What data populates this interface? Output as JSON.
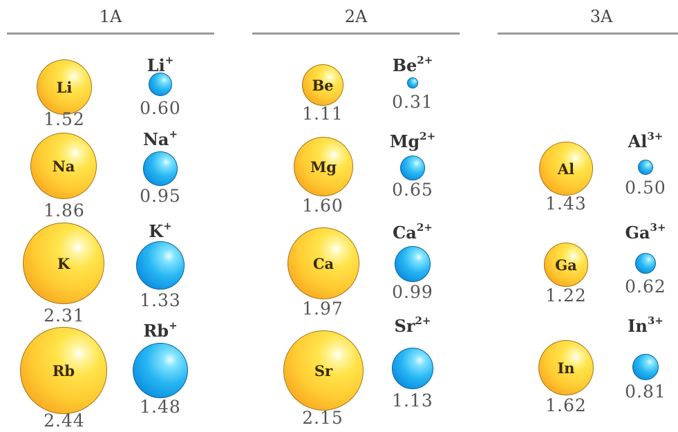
{
  "groups": [
    {
      "name": "1A",
      "atoms": [
        {
          "symbol": "Li",
          "radius": "1.52"
        },
        {
          "symbol": "Na",
          "radius": "1.86"
        },
        {
          "symbol": "K",
          "radius": "2.31"
        },
        {
          "symbol": "Rb",
          "radius": "2.44"
        }
      ],
      "ions": [
        {
          "symbol": "Li",
          "charge": "+",
          "radius": "0.60"
        },
        {
          "symbol": "Na",
          "charge": "+",
          "radius": "0.95"
        },
        {
          "symbol": "K",
          "charge": "+",
          "radius": "1.33"
        },
        {
          "symbol": "Rb",
          "charge": "+",
          "radius": "1.48"
        }
      ]
    },
    {
      "name": "2A",
      "atoms": [
        {
          "symbol": "Be",
          "radius": "1.11"
        },
        {
          "symbol": "Mg",
          "radius": "1.60"
        },
        {
          "symbol": "Ca",
          "radius": "1.97"
        },
        {
          "symbol": "Sr",
          "radius": "2.15"
        }
      ],
      "ions": [
        {
          "symbol": "Be",
          "charge": "2+",
          "radius": "0.31"
        },
        {
          "symbol": "Mg",
          "charge": "2+",
          "radius": "0.65"
        },
        {
          "symbol": "Ca",
          "charge": "2+",
          "radius": "0.99"
        },
        {
          "symbol": "Sr",
          "charge": "2+",
          "radius": "1.13"
        }
      ]
    },
    {
      "name": "3A",
      "atoms": [
        {
          "symbol": "Al",
          "radius": "1.43"
        },
        {
          "symbol": "Ga",
          "radius": "1.22"
        },
        {
          "symbol": "In",
          "radius": "1.62"
        }
      ],
      "ions": [
        {
          "symbol": "Al",
          "charge": "3+",
          "radius": "0.50"
        },
        {
          "symbol": "Ga",
          "charge": "3+",
          "radius": "0.62"
        },
        {
          "symbol": "In",
          "charge": "3+",
          "radius": "0.81"
        }
      ]
    }
  ],
  "colors": {
    "atom_sphere": "#ffcc33",
    "ion_sphere": "#1aa3ea",
    "header_rule": "#9a9a9a"
  }
}
